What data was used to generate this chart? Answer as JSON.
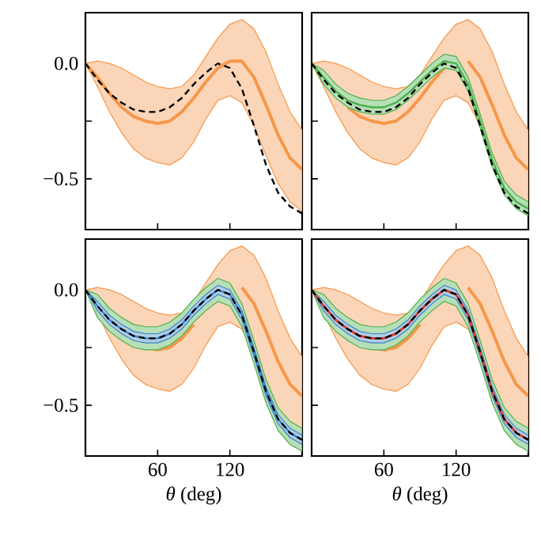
{
  "chart_data": [
    {
      "type": "line",
      "x": [
        0,
        10,
        20,
        30,
        40,
        50,
        60,
        70,
        80,
        90,
        100,
        110,
        120,
        130,
        140,
        150,
        160,
        170,
        180
      ],
      "xlim": [
        0,
        180
      ],
      "ylim": [
        -0.72,
        0.22
      ],
      "xticks": [
        60,
        120
      ],
      "yticks": [
        {
          "value": 0,
          "label": "0.0"
        },
        {
          "value": -0.25,
          "label": null
        },
        {
          "value": -0.5,
          "label": "−0.5"
        }
      ],
      "tick_labels": "y",
      "series": [
        {
          "color": "#f5974a",
          "line_style": "solid",
          "values": [
            0,
            -0.06,
            -0.13,
            -0.19,
            -0.23,
            -0.25,
            -0.26,
            -0.25,
            -0.21,
            -0.15,
            -0.08,
            -0.02,
            0.01,
            0.01,
            -0.06,
            -0.18,
            -0.31,
            -0.41,
            -0.46
          ],
          "upper": [
            0,
            0.01,
            0.0,
            -0.02,
            -0.05,
            -0.08,
            -0.1,
            -0.11,
            -0.1,
            -0.05,
            0.03,
            0.11,
            0.17,
            0.19,
            0.15,
            0.05,
            -0.09,
            -0.21,
            -0.29
          ],
          "lower": [
            0,
            -0.1,
            -0.21,
            -0.3,
            -0.37,
            -0.41,
            -0.43,
            -0.44,
            -0.41,
            -0.34,
            -0.24,
            -0.16,
            -0.14,
            -0.17,
            -0.27,
            -0.4,
            -0.52,
            -0.6,
            -0.64
          ]
        },
        {
          "color": "#000000",
          "line_style": "dashed",
          "values": [
            0,
            -0.07,
            -0.13,
            -0.17,
            -0.2,
            -0.21,
            -0.21,
            -0.19,
            -0.15,
            -0.09,
            -0.04,
            0.0,
            -0.02,
            -0.11,
            -0.27,
            -0.44,
            -0.56,
            -0.62,
            -0.65
          ]
        }
      ]
    },
    {
      "type": "line",
      "x": [
        0,
        10,
        20,
        30,
        40,
        50,
        60,
        70,
        80,
        90,
        100,
        110,
        120,
        130,
        140,
        150,
        160,
        170,
        180
      ],
      "xlim": [
        0,
        180
      ],
      "ylim": [
        -0.72,
        0.22
      ],
      "xticks": [
        60,
        120
      ],
      "yticks": [
        {
          "value": 0,
          "label": null
        },
        {
          "value": -0.25,
          "label": null
        },
        {
          "value": -0.5,
          "label": null
        }
      ],
      "tick_labels": false,
      "series": [
        {
          "color": "#f5974a",
          "line_style": "solid",
          "values": [
            null,
            null,
            null,
            -0.19,
            -0.23,
            -0.25,
            -0.26,
            -0.25,
            -0.21,
            -0.15,
            -0.08,
            -0.02,
            null,
            0.01,
            -0.06,
            -0.18,
            -0.31,
            -0.41,
            -0.46
          ],
          "upper": [
            0,
            0.01,
            0.0,
            -0.02,
            -0.05,
            -0.08,
            -0.1,
            -0.11,
            -0.1,
            -0.05,
            0.03,
            0.11,
            0.17,
            0.19,
            0.15,
            0.05,
            -0.09,
            -0.21,
            -0.29
          ],
          "lower": [
            0,
            -0.1,
            -0.21,
            -0.3,
            -0.37,
            -0.41,
            -0.43,
            -0.44,
            -0.41,
            -0.34,
            -0.24,
            -0.16,
            -0.14,
            -0.17,
            -0.27,
            -0.4,
            -0.52,
            -0.6,
            -0.64
          ]
        },
        {
          "color": "#4cb04c",
          "line_style": "solid",
          "values": [
            0,
            -0.06,
            -0.12,
            -0.16,
            -0.18,
            -0.19,
            -0.19,
            -0.17,
            -0.13,
            -0.08,
            -0.03,
            0.01,
            0.0,
            -0.09,
            -0.25,
            -0.42,
            -0.54,
            -0.6,
            -0.63
          ],
          "upper": [
            0,
            -0.03,
            -0.09,
            -0.13,
            -0.15,
            -0.16,
            -0.16,
            -0.14,
            -0.1,
            -0.05,
            0.0,
            0.04,
            0.03,
            -0.06,
            -0.22,
            -0.39,
            -0.51,
            -0.57,
            -0.6
          ],
          "lower": [
            0,
            -0.09,
            -0.15,
            -0.19,
            -0.21,
            -0.22,
            -0.22,
            -0.2,
            -0.16,
            -0.11,
            -0.06,
            -0.02,
            -0.03,
            -0.12,
            -0.28,
            -0.45,
            -0.57,
            -0.63,
            -0.66
          ]
        },
        {
          "color": "#000000",
          "line_style": "dashed",
          "values": [
            0,
            -0.07,
            -0.13,
            -0.17,
            -0.2,
            -0.21,
            -0.21,
            -0.19,
            -0.15,
            -0.09,
            -0.04,
            0.0,
            -0.02,
            -0.11,
            -0.27,
            -0.44,
            -0.56,
            -0.62,
            -0.65
          ]
        }
      ]
    },
    {
      "type": "line",
      "x": [
        0,
        10,
        20,
        30,
        40,
        50,
        60,
        70,
        80,
        90,
        100,
        110,
        120,
        130,
        140,
        150,
        160,
        170,
        180
      ],
      "xlim": [
        0,
        180
      ],
      "ylim": [
        -0.72,
        0.22
      ],
      "xticks": [
        60,
        120
      ],
      "yticks": [
        {
          "value": 0,
          "label": "0.0"
        },
        {
          "value": -0.25,
          "label": null
        },
        {
          "value": -0.5,
          "label": "−0.5"
        }
      ],
      "xlabel": "*θ* (deg)",
      "series": [
        {
          "color": "#f5974a",
          "line_style": "solid",
          "values": [
            null,
            null,
            null,
            null,
            null,
            -0.25,
            -0.26,
            -0.25,
            -0.21,
            -0.15,
            null,
            null,
            null,
            0.01,
            -0.06,
            -0.18,
            -0.31,
            -0.41,
            -0.46
          ],
          "upper": [
            0,
            0.01,
            0.0,
            -0.02,
            -0.05,
            -0.08,
            -0.1,
            -0.11,
            -0.1,
            -0.05,
            0.03,
            0.11,
            0.17,
            0.19,
            0.15,
            0.05,
            -0.09,
            -0.21,
            -0.29
          ],
          "lower": [
            0,
            -0.1,
            -0.21,
            -0.3,
            -0.37,
            -0.41,
            -0.43,
            -0.44,
            -0.41,
            -0.34,
            -0.24,
            -0.16,
            -0.14,
            -0.17,
            -0.27,
            -0.4,
            -0.52,
            -0.6,
            -0.64
          ]
        },
        {
          "color": "#4cb04c",
          "values": [
            null,
            null,
            null,
            null,
            null,
            null,
            null,
            null,
            null,
            null,
            null,
            null,
            null,
            null,
            null,
            null,
            null,
            null,
            null
          ],
          "upper": [
            0,
            -0.02,
            -0.08,
            -0.12,
            -0.15,
            -0.16,
            -0.16,
            -0.14,
            -0.1,
            -0.04,
            0.01,
            0.05,
            0.03,
            -0.06,
            -0.22,
            -0.39,
            -0.51,
            -0.57,
            -0.6
          ],
          "lower": [
            0,
            -0.12,
            -0.18,
            -0.22,
            -0.25,
            -0.26,
            -0.26,
            -0.24,
            -0.2,
            -0.14,
            -0.09,
            -0.05,
            -0.07,
            -0.16,
            -0.32,
            -0.49,
            -0.61,
            -0.67,
            -0.7
          ]
        },
        {
          "color": "#3a82c4",
          "line_style": "solid",
          "values": [
            0,
            -0.07,
            -0.13,
            -0.17,
            -0.2,
            -0.21,
            -0.21,
            -0.19,
            -0.15,
            -0.09,
            -0.04,
            0.0,
            -0.02,
            -0.11,
            -0.27,
            -0.44,
            -0.56,
            -0.62,
            -0.65
          ],
          "upper": [
            0,
            -0.05,
            -0.11,
            -0.15,
            -0.18,
            -0.19,
            -0.19,
            -0.17,
            -0.13,
            -0.07,
            -0.02,
            0.02,
            0.0,
            -0.09,
            -0.25,
            -0.42,
            -0.54,
            -0.6,
            -0.63
          ],
          "lower": [
            0,
            -0.09,
            -0.15,
            -0.19,
            -0.22,
            -0.23,
            -0.23,
            -0.21,
            -0.17,
            -0.11,
            -0.06,
            -0.02,
            -0.04,
            -0.13,
            -0.29,
            -0.46,
            -0.58,
            -0.64,
            -0.67
          ]
        },
        {
          "color": "#000000",
          "line_style": "dashed",
          "values": [
            0,
            -0.07,
            -0.13,
            -0.17,
            -0.2,
            -0.21,
            -0.21,
            -0.19,
            -0.15,
            -0.09,
            -0.04,
            0.0,
            -0.02,
            -0.11,
            -0.27,
            -0.44,
            -0.56,
            -0.62,
            -0.65
          ]
        }
      ]
    },
    {
      "type": "line",
      "x": [
        0,
        10,
        20,
        30,
        40,
        50,
        60,
        70,
        80,
        90,
        100,
        110,
        120,
        130,
        140,
        150,
        160,
        170,
        180
      ],
      "xlim": [
        0,
        180
      ],
      "ylim": [
        -0.72,
        0.22
      ],
      "xticks": [
        60,
        120
      ],
      "yticks": [
        {
          "value": 0,
          "label": null
        },
        {
          "value": -0.25,
          "label": null
        },
        {
          "value": -0.5,
          "label": null
        }
      ],
      "xlabel": "*θ* (deg)",
      "tick_labels": "x",
      "series": [
        {
          "color": "#f5974a",
          "line_style": "solid",
          "values": [
            null,
            null,
            null,
            null,
            null,
            -0.25,
            -0.26,
            -0.25,
            -0.21,
            -0.15,
            null,
            null,
            null,
            0.01,
            -0.06,
            -0.18,
            -0.31,
            -0.41,
            -0.46
          ],
          "upper": [
            0,
            0.01,
            0.0,
            -0.02,
            -0.05,
            -0.08,
            -0.1,
            -0.11,
            -0.1,
            -0.05,
            0.03,
            0.11,
            0.17,
            0.19,
            0.15,
            0.05,
            -0.09,
            -0.21,
            -0.29
          ],
          "lower": [
            0,
            -0.1,
            -0.21,
            -0.3,
            -0.37,
            -0.41,
            -0.43,
            -0.44,
            -0.41,
            -0.34,
            -0.24,
            -0.16,
            -0.14,
            -0.17,
            -0.27,
            -0.4,
            -0.52,
            -0.6,
            -0.64
          ]
        },
        {
          "color": "#4cb04c",
          "values": [
            null,
            null,
            null,
            null,
            null,
            null,
            null,
            null,
            null,
            null,
            null,
            null,
            null,
            null,
            null,
            null,
            null,
            null,
            null
          ],
          "upper": [
            0,
            -0.02,
            -0.08,
            -0.12,
            -0.15,
            -0.16,
            -0.16,
            -0.14,
            -0.1,
            -0.04,
            0.01,
            0.05,
            0.03,
            -0.06,
            -0.22,
            -0.39,
            -0.51,
            -0.57,
            -0.6
          ],
          "lower": [
            0,
            -0.12,
            -0.18,
            -0.22,
            -0.25,
            -0.26,
            -0.26,
            -0.24,
            -0.2,
            -0.14,
            -0.09,
            -0.05,
            -0.07,
            -0.16,
            -0.32,
            -0.49,
            -0.61,
            -0.67,
            -0.7
          ]
        },
        {
          "color": "#3a82c4",
          "line_style": "solid",
          "values": [
            0,
            -0.07,
            -0.13,
            -0.17,
            -0.2,
            -0.21,
            -0.21,
            -0.19,
            -0.15,
            -0.09,
            -0.04,
            0.0,
            -0.02,
            -0.11,
            -0.27,
            -0.44,
            -0.56,
            -0.62,
            -0.65
          ],
          "upper": [
            0,
            -0.05,
            -0.11,
            -0.15,
            -0.18,
            -0.19,
            -0.19,
            -0.17,
            -0.13,
            -0.07,
            -0.02,
            0.02,
            0.0,
            -0.09,
            -0.25,
            -0.42,
            -0.54,
            -0.6,
            -0.63
          ],
          "lower": [
            0,
            -0.09,
            -0.15,
            -0.19,
            -0.22,
            -0.23,
            -0.23,
            -0.21,
            -0.17,
            -0.11,
            -0.06,
            -0.02,
            -0.04,
            -0.13,
            -0.29,
            -0.46,
            -0.58,
            -0.64,
            -0.67
          ]
        },
        {
          "color": "#e03a2a",
          "line_style": "solid",
          "values": [
            0,
            -0.07,
            -0.13,
            -0.17,
            -0.2,
            -0.21,
            -0.21,
            -0.19,
            -0.15,
            -0.09,
            -0.04,
            0.0,
            -0.02,
            -0.11,
            -0.27,
            -0.44,
            -0.56,
            -0.62,
            -0.65
          ]
        },
        {
          "color": "#000000",
          "line_style": "dashed",
          "values": [
            0,
            -0.07,
            -0.13,
            -0.17,
            -0.2,
            -0.21,
            -0.21,
            -0.19,
            -0.15,
            -0.09,
            -0.04,
            0.0,
            -0.02,
            -0.11,
            -0.27,
            -0.44,
            -0.56,
            -0.62,
            -0.65
          ]
        }
      ]
    }
  ]
}
